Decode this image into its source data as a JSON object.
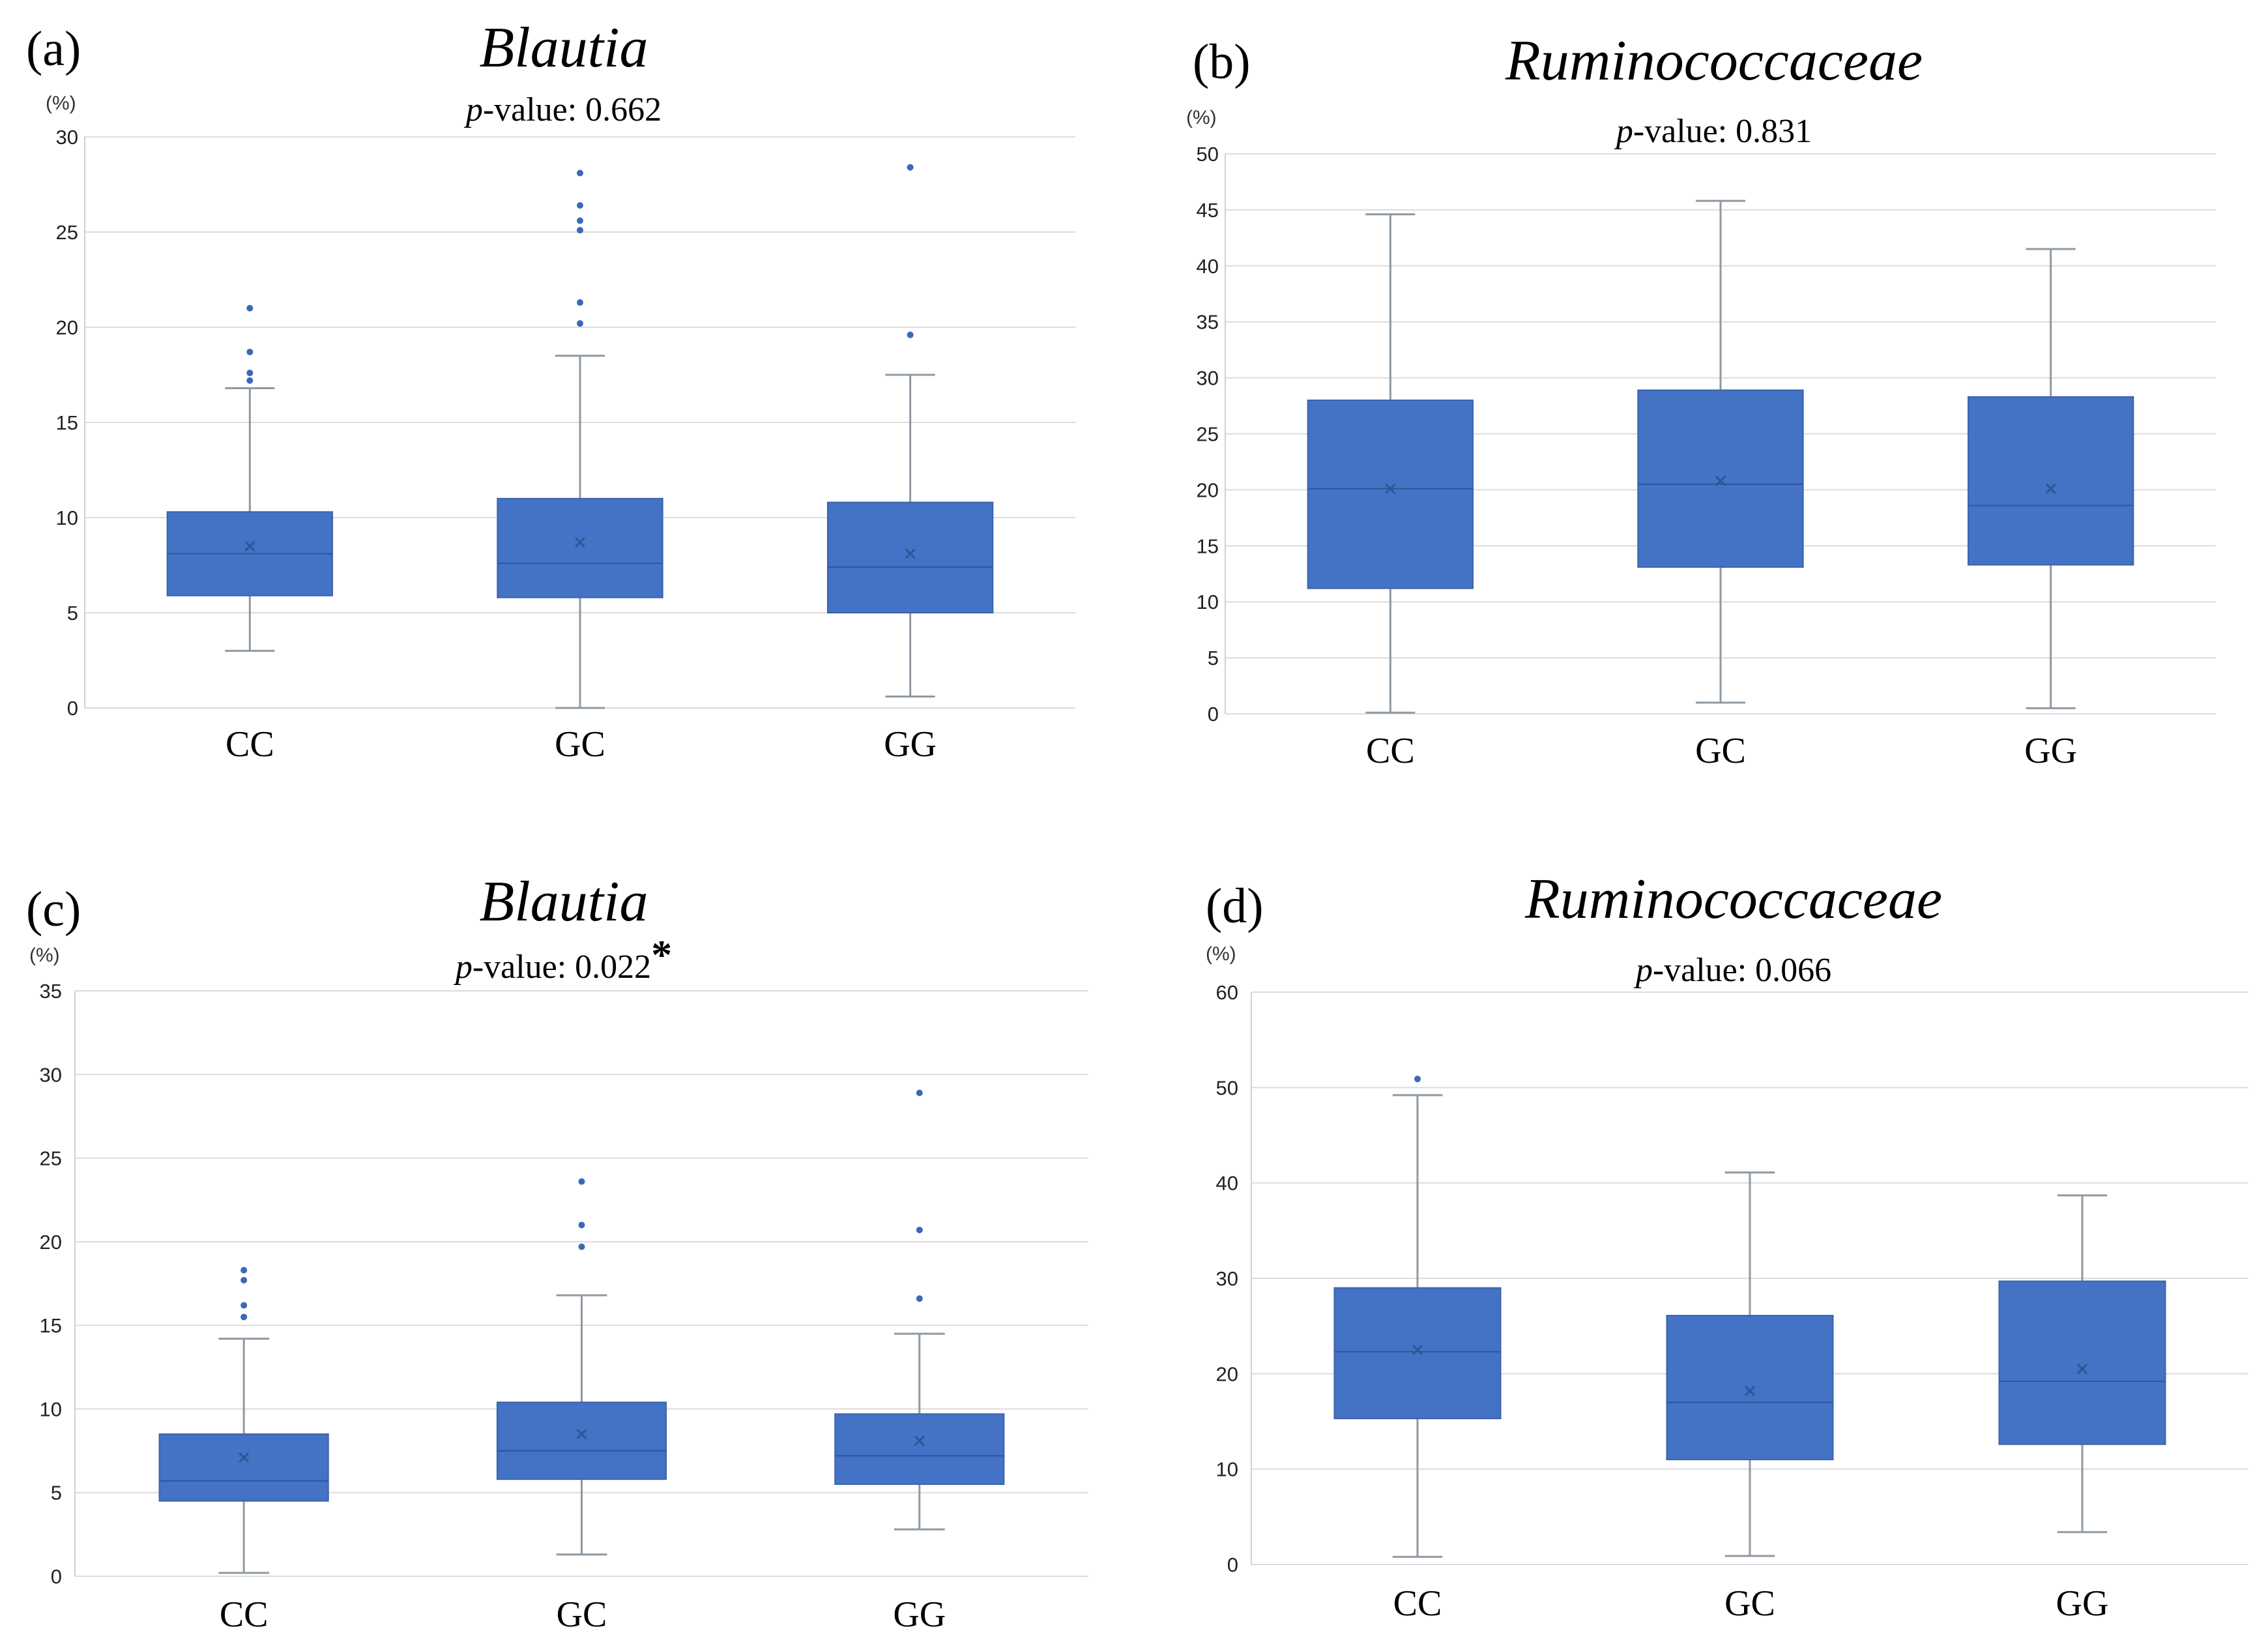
{
  "chart_data": [
    {
      "type": "box",
      "panel": "(a)",
      "title": "Blautia",
      "pvalue_prefix": "p",
      "pvalue_text": "-value: 0.662",
      "pvalue_star": "",
      "unit": "(%)",
      "ylim": [
        0,
        30
      ],
      "yticks": [
        0,
        5,
        10,
        15,
        20,
        25,
        30
      ],
      "grid": true,
      "categories": [
        "CC",
        "GC",
        "GG"
      ],
      "boxes": [
        {
          "min": 3.0,
          "q1": 5.9,
          "median": 8.1,
          "q3": 10.3,
          "max": 16.8,
          "mean": 8.5,
          "outliers": [
            17.2,
            17.6,
            18.7,
            21.0
          ]
        },
        {
          "min": 0.0,
          "q1": 5.8,
          "median": 7.6,
          "q3": 11.0,
          "max": 18.5,
          "mean": 8.7,
          "outliers": [
            20.2,
            21.3,
            25.1,
            25.6,
            26.4,
            28.1
          ]
        },
        {
          "min": 0.6,
          "q1": 5.0,
          "median": 7.4,
          "q3": 10.8,
          "max": 17.5,
          "mean": 8.1,
          "outliers": [
            19.6,
            28.4
          ]
        }
      ]
    },
    {
      "type": "box",
      "panel": "(b)",
      "title": "Ruminococcaceae",
      "pvalue_prefix": "p",
      "pvalue_text": "-value: 0.831",
      "pvalue_star": "",
      "unit": "(%)",
      "ylim": [
        0,
        50
      ],
      "yticks": [
        0,
        5,
        10,
        15,
        20,
        25,
        30,
        35,
        40,
        45,
        50
      ],
      "grid": true,
      "categories": [
        "CC",
        "GC",
        "GG"
      ],
      "boxes": [
        {
          "min": 0.1,
          "q1": 11.2,
          "median": 20.1,
          "q3": 28.0,
          "max": 44.6,
          "mean": 20.1,
          "outliers": []
        },
        {
          "min": 1.0,
          "q1": 13.1,
          "median": 20.5,
          "q3": 28.9,
          "max": 45.8,
          "mean": 20.8,
          "outliers": []
        },
        {
          "min": 0.5,
          "q1": 13.3,
          "median": 18.6,
          "q3": 28.3,
          "max": 41.5,
          "mean": 20.1,
          "outliers": []
        }
      ]
    },
    {
      "type": "box",
      "panel": "(c)",
      "title": "Blautia",
      "pvalue_prefix": "p",
      "pvalue_text": "-value: 0.022",
      "pvalue_star": "*",
      "unit": "(%)",
      "ylim": [
        0,
        35
      ],
      "yticks": [
        0,
        5,
        10,
        15,
        20,
        25,
        30,
        35
      ],
      "grid": true,
      "categories": [
        "CC",
        "GC",
        "GG"
      ],
      "boxes": [
        {
          "min": 0.2,
          "q1": 4.5,
          "median": 5.7,
          "q3": 8.5,
          "max": 14.2,
          "mean": 7.1,
          "outliers": [
            15.5,
            16.2,
            17.7,
            18.3
          ]
        },
        {
          "min": 1.3,
          "q1": 5.8,
          "median": 7.5,
          "q3": 10.4,
          "max": 16.8,
          "mean": 8.5,
          "outliers": [
            19.7,
            21.0,
            23.6
          ]
        },
        {
          "min": 2.8,
          "q1": 5.5,
          "median": 7.2,
          "q3": 9.7,
          "max": 14.5,
          "mean": 8.1,
          "outliers": [
            16.6,
            20.7,
            28.9
          ]
        }
      ]
    },
    {
      "type": "box",
      "panel": "(d)",
      "title": "Ruminococcaceae",
      "pvalue_prefix": "p",
      "pvalue_text": "-value: 0.066",
      "pvalue_star": "",
      "unit": "(%)",
      "ylim": [
        0,
        60
      ],
      "yticks": [
        0,
        10,
        20,
        30,
        40,
        50,
        60
      ],
      "grid": true,
      "categories": [
        "CC",
        "GC",
        "GG"
      ],
      "boxes": [
        {
          "min": 0.8,
          "q1": 15.3,
          "median": 22.3,
          "q3": 29.0,
          "max": 49.2,
          "mean": 22.5,
          "outliers": [
            50.9
          ]
        },
        {
          "min": 0.9,
          "q1": 11.0,
          "median": 17.0,
          "q3": 26.1,
          "max": 41.1,
          "mean": 18.2,
          "outliers": []
        },
        {
          "min": 3.4,
          "q1": 12.6,
          "median": 19.2,
          "q3": 29.7,
          "max": 38.7,
          "mean": 20.5,
          "outliers": []
        }
      ]
    }
  ]
}
